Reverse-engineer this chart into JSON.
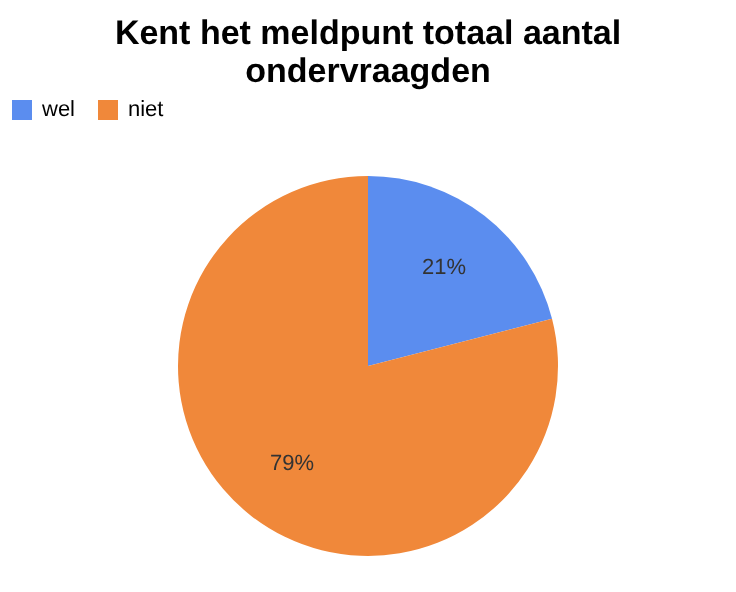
{
  "chart_data": {
    "type": "pie",
    "title": "Kent het meldpunt totaal aantal ondervraagden",
    "categories": [
      "wel",
      "niet"
    ],
    "values": [
      21,
      79
    ],
    "colors": [
      "#5b8def",
      "#f0883a"
    ],
    "value_labels": [
      "21%",
      "79%"
    ],
    "legend": "top"
  }
}
